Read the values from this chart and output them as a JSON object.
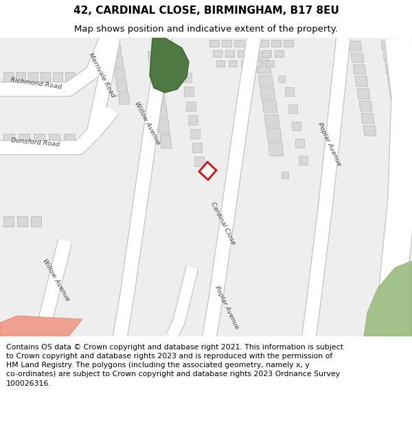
{
  "title_line1": "42, CARDINAL CLOSE, BIRMINGHAM, B17 8EU",
  "title_line2": "Map shows position and indicative extent of the property.",
  "footer_text_lines": [
    "Contains OS data © Crown copyright and database right 2021. This information is subject to Crown copyright and database rights 2023 and is reproduced with the permission of",
    "HM Land Registry. The polygons (including the associated geometry, namely x, y co-ordinates) are subject to Crown copyright and database rights 2023 Ordnance Survey",
    "100026316."
  ],
  "title_fontsize": 11,
  "subtitle_fontsize": 9.5,
  "footer_fontsize": 7.8,
  "map_bg": "#f0f0f0",
  "road_fill": "#ffffff",
  "road_edge": "#c8c8c8",
  "bldg_fill": "#d8d8d8",
  "bldg_edge": "#b0b0b0",
  "green_dark_fill": "#4f7942",
  "green_dark_edge": "#3d6232",
  "green_light_fill": "#a3c18a",
  "green_light_edge": "#8aaa72",
  "salmon_fill": "#f0a090",
  "salmon_edge": "#d88070",
  "red_plot": "#cc1111",
  "street_label_color": "#444444",
  "street_label_size": 6.8
}
